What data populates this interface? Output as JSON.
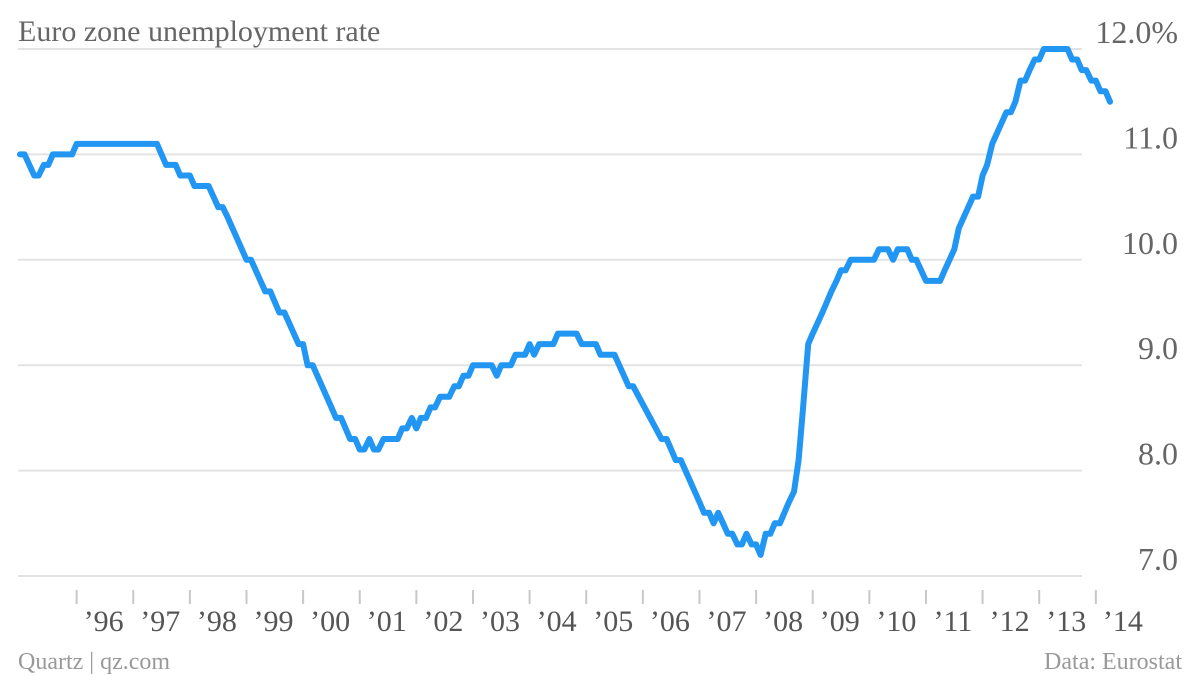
{
  "chart_data": {
    "type": "line",
    "title": "Euro zone unemployment rate",
    "xlabel": "",
    "ylabel": "",
    "ylim": [
      7.0,
      12.0
    ],
    "y_ticks": [
      {
        "value": 12.0,
        "label": "12.0%"
      },
      {
        "value": 11.0,
        "label": "11.0"
      },
      {
        "value": 10.0,
        "label": "10.0"
      },
      {
        "value": 9.0,
        "label": "9.0"
      },
      {
        "value": 8.0,
        "label": "8.0"
      },
      {
        "value": 7.0,
        "label": "7.0"
      }
    ],
    "x_ticks": [
      {
        "value": 1996,
        "label": "’96"
      },
      {
        "value": 1997,
        "label": "’97"
      },
      {
        "value": 1998,
        "label": "’98"
      },
      {
        "value": 1999,
        "label": "’99"
      },
      {
        "value": 2000,
        "label": "’00"
      },
      {
        "value": 2001,
        "label": "’01"
      },
      {
        "value": 2002,
        "label": "’02"
      },
      {
        "value": 2003,
        "label": "’03"
      },
      {
        "value": 2004,
        "label": "’04"
      },
      {
        "value": 2005,
        "label": "’05"
      },
      {
        "value": 2006,
        "label": "’06"
      },
      {
        "value": 2007,
        "label": "’07"
      },
      {
        "value": 2008,
        "label": "’08"
      },
      {
        "value": 2009,
        "label": "’09"
      },
      {
        "value": 2010,
        "label": "’10"
      },
      {
        "value": 2011,
        "label": "’11"
      },
      {
        "value": 2012,
        "label": "’12"
      },
      {
        "value": 2013,
        "label": "’13"
      },
      {
        "value": 2014,
        "label": "’14"
      }
    ],
    "grid": true,
    "series": [
      {
        "color": "#2196f3",
        "points": [
          [
            1995.0,
            11.0
          ],
          [
            1995.08,
            11.0
          ],
          [
            1995.25,
            10.8
          ],
          [
            1995.33,
            10.8
          ],
          [
            1995.42,
            10.9
          ],
          [
            1995.5,
            10.9
          ],
          [
            1995.58,
            11.0
          ],
          [
            1995.92,
            11.0
          ],
          [
            1996.0,
            11.1
          ],
          [
            1997.42,
            11.1
          ],
          [
            1997.58,
            10.9
          ],
          [
            1997.75,
            10.9
          ],
          [
            1997.83,
            10.8
          ],
          [
            1998.0,
            10.8
          ],
          [
            1998.08,
            10.7
          ],
          [
            1998.33,
            10.7
          ],
          [
            1998.5,
            10.5
          ],
          [
            1998.58,
            10.5
          ],
          [
            1998.67,
            10.4
          ],
          [
            1999.0,
            10.0
          ],
          [
            1999.08,
            10.0
          ],
          [
            1999.33,
            9.7
          ],
          [
            1999.42,
            9.7
          ],
          [
            1999.58,
            9.5
          ],
          [
            1999.67,
            9.5
          ],
          [
            1999.92,
            9.2
          ],
          [
            2000.0,
            9.2
          ],
          [
            2000.08,
            9.0
          ],
          [
            2000.17,
            9.0
          ],
          [
            2000.5,
            8.6
          ],
          [
            2000.58,
            8.5
          ],
          [
            2000.67,
            8.5
          ],
          [
            2000.75,
            8.4
          ],
          [
            2000.83,
            8.3
          ],
          [
            2000.92,
            8.3
          ],
          [
            2001.0,
            8.2
          ],
          [
            2001.08,
            8.2
          ],
          [
            2001.17,
            8.3
          ],
          [
            2001.25,
            8.2
          ],
          [
            2001.33,
            8.2
          ],
          [
            2001.42,
            8.3
          ],
          [
            2001.58,
            8.3
          ],
          [
            2001.67,
            8.3
          ],
          [
            2001.75,
            8.4
          ],
          [
            2001.83,
            8.4
          ],
          [
            2001.92,
            8.5
          ],
          [
            2002.0,
            8.4
          ],
          [
            2002.08,
            8.5
          ],
          [
            2002.17,
            8.5
          ],
          [
            2002.25,
            8.6
          ],
          [
            2002.33,
            8.6
          ],
          [
            2002.42,
            8.7
          ],
          [
            2002.58,
            8.7
          ],
          [
            2002.67,
            8.8
          ],
          [
            2002.75,
            8.8
          ],
          [
            2002.83,
            8.9
          ],
          [
            2002.92,
            8.9
          ],
          [
            2003.0,
            9.0
          ],
          [
            2003.25,
            9.0
          ],
          [
            2003.33,
            9.0
          ],
          [
            2003.42,
            8.9
          ],
          [
            2003.5,
            9.0
          ],
          [
            2003.67,
            9.0
          ],
          [
            2003.75,
            9.1
          ],
          [
            2003.92,
            9.1
          ],
          [
            2004.0,
            9.2
          ],
          [
            2004.08,
            9.1
          ],
          [
            2004.17,
            9.2
          ],
          [
            2004.42,
            9.2
          ],
          [
            2004.5,
            9.3
          ],
          [
            2004.83,
            9.3
          ],
          [
            2004.92,
            9.2
          ],
          [
            2005.17,
            9.2
          ],
          [
            2005.25,
            9.1
          ],
          [
            2005.5,
            9.1
          ],
          [
            2005.75,
            8.8
          ],
          [
            2005.83,
            8.8
          ],
          [
            2006.33,
            8.3
          ],
          [
            2006.42,
            8.3
          ],
          [
            2006.58,
            8.1
          ],
          [
            2006.67,
            8.1
          ],
          [
            2007.0,
            7.7
          ],
          [
            2007.08,
            7.6
          ],
          [
            2007.17,
            7.6
          ],
          [
            2007.25,
            7.5
          ],
          [
            2007.33,
            7.6
          ],
          [
            2007.5,
            7.4
          ],
          [
            2007.58,
            7.4
          ],
          [
            2007.67,
            7.3
          ],
          [
            2007.75,
            7.3
          ],
          [
            2007.83,
            7.4
          ],
          [
            2007.92,
            7.3
          ],
          [
            2008.0,
            7.3
          ],
          [
            2008.08,
            7.2
          ],
          [
            2008.17,
            7.4
          ],
          [
            2008.25,
            7.4
          ],
          [
            2008.33,
            7.5
          ],
          [
            2008.42,
            7.5
          ],
          [
            2008.58,
            7.7
          ],
          [
            2008.67,
            7.8
          ],
          [
            2008.75,
            8.1
          ],
          [
            2008.83,
            8.6
          ],
          [
            2008.92,
            9.2
          ],
          [
            2009.0,
            9.3
          ],
          [
            2009.17,
            9.5
          ],
          [
            2009.33,
            9.7
          ],
          [
            2009.42,
            9.8
          ],
          [
            2009.5,
            9.9
          ],
          [
            2009.58,
            9.9
          ],
          [
            2009.67,
            10.0
          ],
          [
            2009.83,
            10.0
          ],
          [
            2009.92,
            10.0
          ],
          [
            2010.0,
            10.0
          ],
          [
            2010.08,
            10.0
          ],
          [
            2010.17,
            10.1
          ],
          [
            2010.33,
            10.1
          ],
          [
            2010.42,
            10.0
          ],
          [
            2010.5,
            10.1
          ],
          [
            2010.67,
            10.1
          ],
          [
            2010.75,
            10.0
          ],
          [
            2010.83,
            10.0
          ],
          [
            2011.0,
            9.8
          ],
          [
            2011.25,
            9.8
          ],
          [
            2011.33,
            9.9
          ],
          [
            2011.5,
            10.1
          ],
          [
            2011.58,
            10.3
          ],
          [
            2011.83,
            10.6
          ],
          [
            2011.92,
            10.6
          ],
          [
            2012.0,
            10.8
          ],
          [
            2012.08,
            10.9
          ],
          [
            2012.17,
            11.1
          ],
          [
            2012.42,
            11.4
          ],
          [
            2012.5,
            11.4
          ],
          [
            2012.58,
            11.5
          ],
          [
            2012.67,
            11.7
          ],
          [
            2012.75,
            11.7
          ],
          [
            2012.83,
            11.8
          ],
          [
            2012.92,
            11.9
          ],
          [
            2013.0,
            11.9
          ],
          [
            2013.08,
            12.0
          ],
          [
            2013.5,
            12.0
          ],
          [
            2013.58,
            11.9
          ],
          [
            2013.67,
            11.9
          ],
          [
            2013.75,
            11.8
          ],
          [
            2013.83,
            11.8
          ],
          [
            2013.92,
            11.7
          ],
          [
            2014.0,
            11.7
          ],
          [
            2014.08,
            11.6
          ],
          [
            2014.17,
            11.6
          ],
          [
            2014.25,
            11.5
          ]
        ]
      }
    ]
  },
  "footer": {
    "source_left": "Quartz | qz.com",
    "source_right": "Data: Eurostat"
  }
}
